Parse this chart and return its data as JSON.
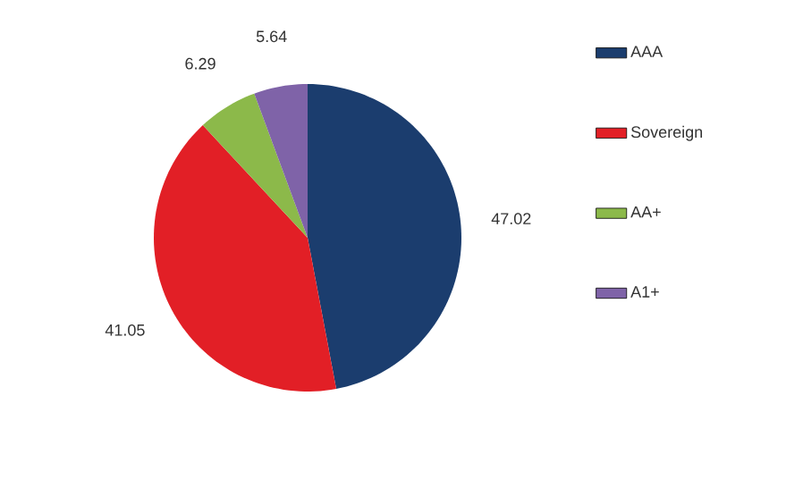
{
  "chart_data": {
    "type": "pie",
    "categories": [
      "AAA",
      "Sovereign",
      "AA+",
      "A1+"
    ],
    "values": [
      47.02,
      41.05,
      6.29,
      5.64
    ],
    "colors": [
      "#1b3d6e",
      "#e21f26",
      "#8cb94a",
      "#7f63a8"
    ],
    "data_labels": true,
    "legend": "right"
  }
}
